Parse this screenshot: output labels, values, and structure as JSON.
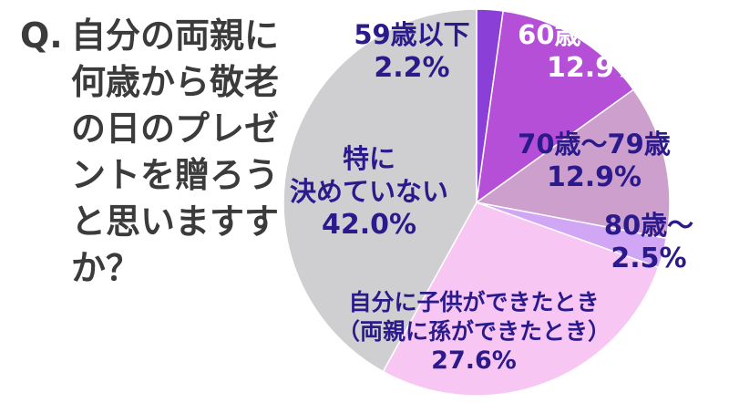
{
  "question": {
    "prefix": "Q.",
    "lines": [
      "自分の両親に",
      "何歳から敬老",
      "の日のプレゼ",
      "ントを贈ろう",
      "と思いますす",
      "か？"
    ]
  },
  "chart_data": {
    "type": "pie",
    "title": "Q. 自分の両親に何歳から敬老の日のプレゼントを贈ろうと思いますか？",
    "unit": "%",
    "slices": [
      {
        "label_lines": [
          "59歳以下"
        ],
        "value": 2.2,
        "value_text": "2.2%",
        "color": "#8a3fd6",
        "label_color": "#2a1a8c"
      },
      {
        "label_lines": [
          "60歳〜69歳"
        ],
        "value": 12.9,
        "value_text": "12.9%",
        "color": "#b64fd8",
        "label_color": "#ffffff"
      },
      {
        "label_lines": [
          "70歳〜79歳"
        ],
        "value": 12.9,
        "value_text": "12.9%",
        "color": "#cc9fcd",
        "label_color": "#2a1a8c"
      },
      {
        "label_lines": [
          "80歳〜"
        ],
        "value": 2.5,
        "value_text": "2.5%",
        "color": "#d1a6f5",
        "label_color": "#2a1a8c"
      },
      {
        "label_lines": [
          "自分に子供ができたとき",
          "（両親に孫ができたとき）"
        ],
        "value": 27.6,
        "value_text": "27.6%",
        "color": "#f8c6f2",
        "label_color": "#2a1a8c"
      },
      {
        "label_lines": [
          "特に",
          "決めていない"
        ],
        "value": 42.0,
        "value_text": "42.0%",
        "color": "#cfcfd1",
        "label_color": "#2a1a8c"
      }
    ]
  }
}
